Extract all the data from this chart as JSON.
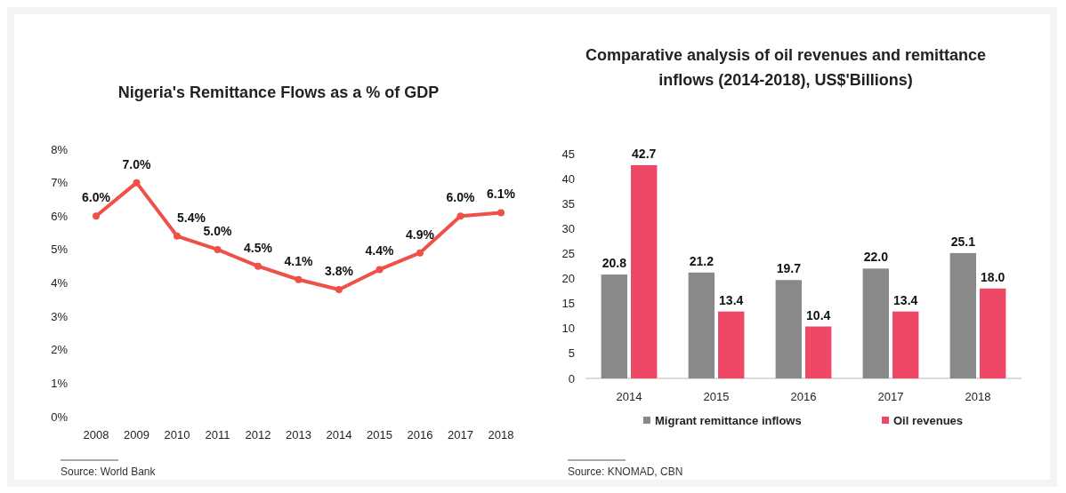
{
  "chart_data": [
    {
      "type": "line",
      "title": "Nigeria's Remittance Flows as a % of GDP",
      "categories": [
        "2008",
        "2009",
        "2010",
        "2011",
        "2012",
        "2013",
        "2014",
        "2015",
        "2016",
        "2017",
        "2018"
      ],
      "series": [
        {
          "color": "#ee5147",
          "values": [
            6.0,
            7.0,
            5.4,
            5.0,
            4.5,
            4.1,
            3.8,
            4.4,
            4.9,
            6.0,
            6.1
          ],
          "value_labels": [
            "6.0%",
            "7.0%",
            "5.4%",
            "5.0%",
            "4.5%",
            "4.1%",
            "3.8%",
            "4.4%",
            "4.9%",
            "6.0%",
            "6.1%"
          ]
        }
      ],
      "ylim": [
        0,
        8
      ],
      "yticks": [
        {
          "value": 0,
          "label": "0%"
        },
        {
          "value": 1,
          "label": "1%"
        },
        {
          "value": 2,
          "label": "2%"
        },
        {
          "value": 3,
          "label": "3%"
        },
        {
          "value": 4,
          "label": "4%"
        },
        {
          "value": 5,
          "label": "5%"
        },
        {
          "value": 6,
          "label": "6%"
        },
        {
          "value": 7,
          "label": "7%"
        },
        {
          "value": 8,
          "label": "8%"
        }
      ],
      "marker": "circle",
      "grid": false,
      "legend": false,
      "annotations": [
        "Source: World Bank"
      ]
    },
    {
      "type": "bar",
      "title": "Comparative analysis of oil revenues and remittance inflows (2014-2018), US$'Billions)",
      "categories": [
        "2014",
        "2015",
        "2016",
        "2017",
        "2018"
      ],
      "series": [
        {
          "name": "Migrant remittance inflows",
          "color": "#898989",
          "values": [
            20.8,
            21.2,
            19.7,
            22.0,
            25.1
          ],
          "value_labels": [
            "20.8",
            "21.2",
            "19.7",
            "22.0",
            "25.1"
          ]
        },
        {
          "name": "Oil revenues",
          "color": "#ef4867",
          "values": [
            42.7,
            13.4,
            10.4,
            13.4,
            18.0
          ],
          "value_labels": [
            "42.7",
            "13.4",
            "10.4",
            "13.4",
            "18.0"
          ]
        }
      ],
      "ylim": [
        0,
        45
      ],
      "yticks": [
        0,
        5,
        10,
        15,
        20,
        25,
        30,
        35,
        40,
        45
      ],
      "grid": false,
      "legend": "bottom",
      "annotations": [
        "Source: KNOMAD, CBN"
      ]
    }
  ]
}
